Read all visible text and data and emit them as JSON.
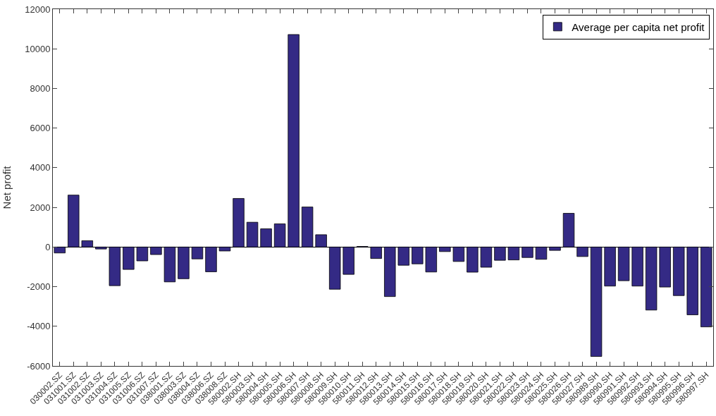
{
  "chart_data": {
    "type": "bar",
    "ylabel": "Net profit",
    "categories": [
      "030002.SZ",
      "031001.SZ",
      "031002.SZ",
      "031003.SZ",
      "031004.SZ",
      "031005.SZ",
      "031006.SZ",
      "031007.SZ",
      "038001.SZ",
      "038003.SZ",
      "038004.SZ",
      "038006.SZ",
      "038008.SZ",
      "580002.SH",
      "580003.SH",
      "580004.SH",
      "580005.SH",
      "580006.SH",
      "580007.SH",
      "580008.SH",
      "580009.SH",
      "580010.SH",
      "580011.SH",
      "580012.SH",
      "580013.SH",
      "580014.SH",
      "580015.SH",
      "580016.SH",
      "580017.SH",
      "580018.SH",
      "580019.SH",
      "580020.SH",
      "580021.SH",
      "580022.SH",
      "580023.SH",
      "580024.SH",
      "580025.SH",
      "580026.SH",
      "580027.SH",
      "580989.SH",
      "580990.SH",
      "580991.SH",
      "580992.SH",
      "580993.SH",
      "580994.SH",
      "580995.SH",
      "580996.SH",
      "580997.SH"
    ],
    "series": [
      {
        "name": "Average per capita net profit",
        "color": "#342a85",
        "values": [
          -300,
          2620,
          320,
          -100,
          -1950,
          -1130,
          -700,
          -380,
          -1760,
          -1600,
          -600,
          -1250,
          -200,
          2450,
          1250,
          920,
          1170,
          10720,
          2020,
          620,
          -2130,
          -1380,
          30,
          -580,
          -2500,
          -920,
          -850,
          -1260,
          -230,
          -730,
          -1270,
          -1020,
          -670,
          -650,
          -530,
          -620,
          -170,
          1700,
          -480,
          -5520,
          -1970,
          -1700,
          -1970,
          -3180,
          -2020,
          -2450,
          -3420,
          -4030
        ]
      }
    ],
    "ylim": [
      -6000,
      12000
    ],
    "yticks": [
      -6000,
      -4000,
      -2000,
      0,
      2000,
      4000,
      6000,
      8000,
      10000,
      12000
    ],
    "legend": "top right"
  }
}
